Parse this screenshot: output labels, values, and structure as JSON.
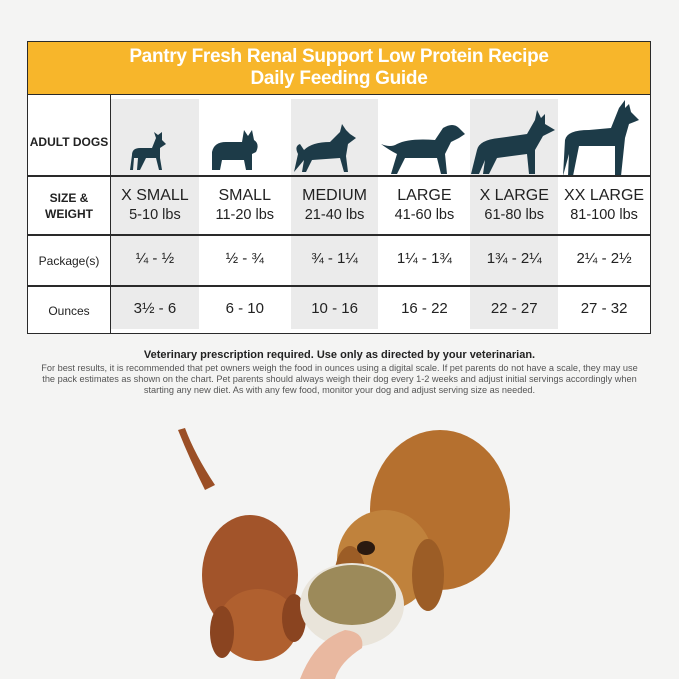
{
  "header": {
    "title_line1": "Pantry Fresh Renal Support Low Protein Recipe",
    "title_line2": "Daily Feeding Guide",
    "color": "#f7b62b"
  },
  "row_labels": {
    "adult_dogs": "ADULT DOGS",
    "size_weight": "SIZE & WEIGHT",
    "packages": "Package(s)",
    "ounces": "Ounces"
  },
  "columns": [
    {
      "size": "X SMALL",
      "weight": "5-10 lbs",
      "packages": "¼ - ½",
      "ounces": "3½ - 6",
      "icon": "chihuahua-silhouette-icon"
    },
    {
      "size": "SMALL",
      "weight": "11-20 lbs",
      "packages": "½ - ¾",
      "ounces": "6 - 10",
      "icon": "french-bulldog-silhouette-icon"
    },
    {
      "size": "MEDIUM",
      "weight": "21-40 lbs",
      "packages": "¾ - 1¼",
      "ounces": "10 - 16",
      "icon": "medium-dog-silhouette-icon"
    },
    {
      "size": "LARGE",
      "weight": "41-60 lbs",
      "packages": "1¼ - 1¾",
      "ounces": "16 - 22",
      "icon": "labrador-silhouette-icon"
    },
    {
      "size": "X LARGE",
      "weight": "61-80 lbs",
      "packages": "1¾ - 2¼",
      "ounces": "22 - 27",
      "icon": "shepherd-silhouette-icon"
    },
    {
      "size": "XX LARGE",
      "weight": "81-100 lbs",
      "packages": "2¼ - 2½",
      "ounces": "27 - 32",
      "icon": "great-dane-silhouette-icon"
    }
  ],
  "notes": {
    "prescription": "Veterinary prescription required. Use only as directed by your veterinarian.",
    "details": "For best results, it is recommended that pet owners weigh the food in ounces using a digital scale. If pet parents do not have a scale, they may use the pack estimates as shown on the chart. Pet parents should always weigh their dog every 1-2 weeks and adjust initial servings accordingly when starting any new diet. As with any few food, monitor your dog and adjust serving size as needed."
  },
  "icon_color": "#1d3b48"
}
